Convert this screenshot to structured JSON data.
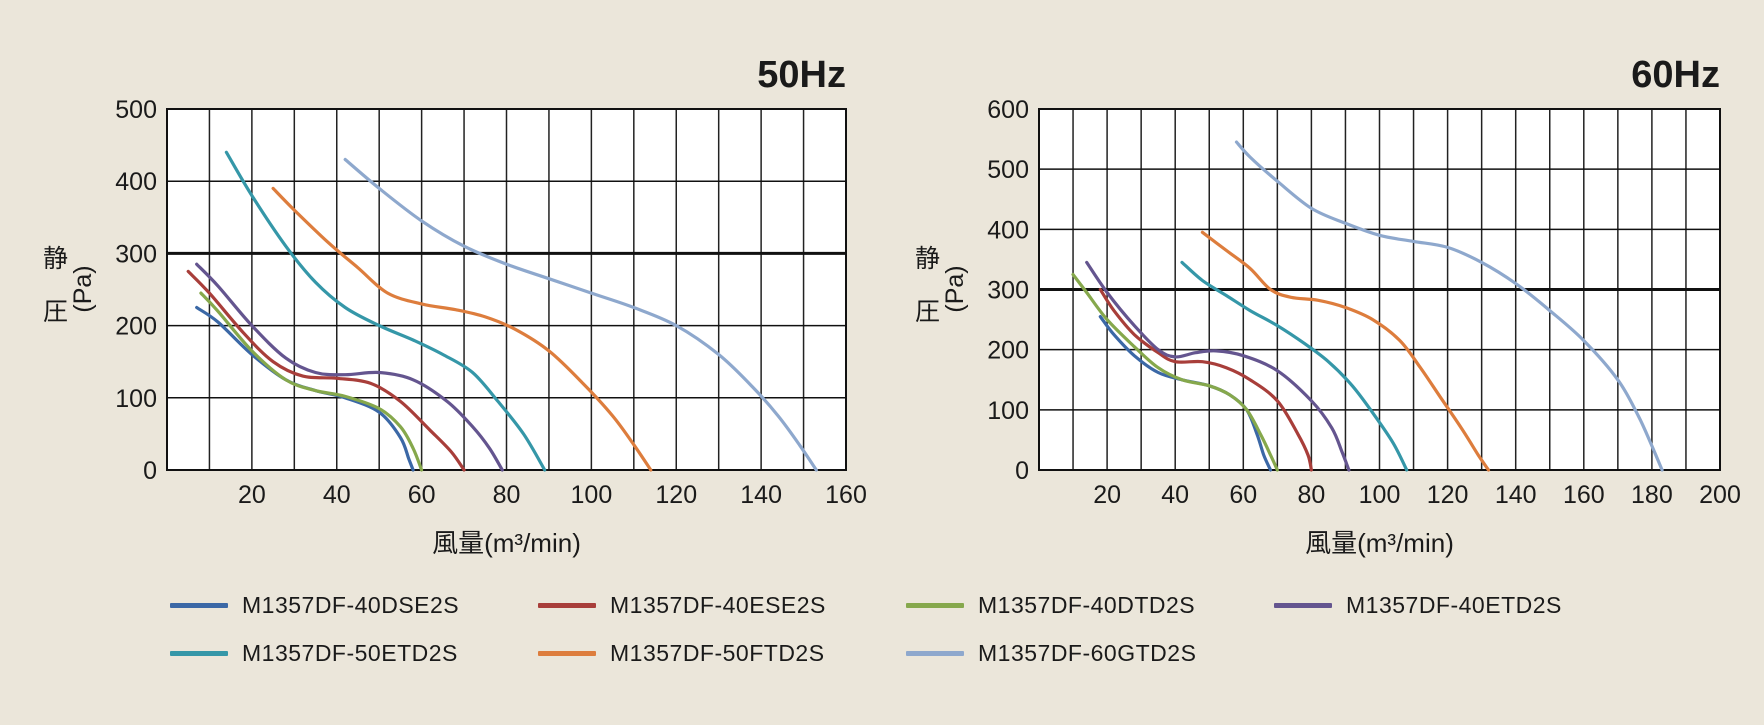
{
  "series_styles": [
    {
      "name": "M1357DF-40DSE2S",
      "color": "#3b68a6"
    },
    {
      "name": "M1357DF-40ESE2S",
      "color": "#a83e3a"
    },
    {
      "name": "M1357DF-40DTD2S",
      "color": "#86a84c"
    },
    {
      "name": "M1357DF-40ETD2S",
      "color": "#64558f"
    },
    {
      "name": "M1357DF-50ETD2S",
      "color": "#3597a8"
    },
    {
      "name": "M1357DF-50FTD2S",
      "color": "#dd7d3d"
    },
    {
      "name": "M1357DF-60GTD2S",
      "color": "#8ea8cd"
    }
  ],
  "chart_data": [
    {
      "type": "line",
      "title": "50Hz",
      "xlabel": "風量(m³/min)",
      "ylabel": "静圧 (Pa)",
      "xlim": [
        0,
        160
      ],
      "ylim": [
        0,
        500
      ],
      "xticks": [
        20,
        40,
        60,
        80,
        100,
        120,
        140,
        160
      ],
      "yticks": [
        0,
        100,
        200,
        300,
        400,
        500
      ],
      "grid": true,
      "x_grid_step": 10,
      "emphasized_y": 300,
      "legend_position": "bottom",
      "series": [
        {
          "name": "M1357DF-40DSE2S",
          "points": [
            [
              7,
              225
            ],
            [
              12,
              205
            ],
            [
              20,
              160
            ],
            [
              28,
              125
            ],
            [
              35,
              110
            ],
            [
              42,
              100
            ],
            [
              50,
              80
            ],
            [
              55,
              45
            ],
            [
              57,
              15
            ],
            [
              58,
              0
            ]
          ]
        },
        {
          "name": "M1357DF-40ESE2S",
          "points": [
            [
              5,
              275
            ],
            [
              10,
              245
            ],
            [
              18,
              190
            ],
            [
              25,
              150
            ],
            [
              32,
              130
            ],
            [
              40,
              127
            ],
            [
              48,
              120
            ],
            [
              55,
              95
            ],
            [
              62,
              55
            ],
            [
              67,
              25
            ],
            [
              70,
              0
            ]
          ]
        },
        {
          "name": "M1357DF-40DTD2S",
          "points": [
            [
              8,
              245
            ],
            [
              12,
              220
            ],
            [
              20,
              165
            ],
            [
              28,
              125
            ],
            [
              35,
              110
            ],
            [
              42,
              102
            ],
            [
              50,
              85
            ],
            [
              55,
              60
            ],
            [
              58,
              30
            ],
            [
              60,
              0
            ]
          ]
        },
        {
          "name": "M1357DF-40ETD2S",
          "points": [
            [
              7,
              285
            ],
            [
              12,
              255
            ],
            [
              20,
              200
            ],
            [
              28,
              155
            ],
            [
              35,
              135
            ],
            [
              42,
              132
            ],
            [
              50,
              135
            ],
            [
              58,
              125
            ],
            [
              66,
              95
            ],
            [
              72,
              60
            ],
            [
              76,
              30
            ],
            [
              79,
              0
            ]
          ]
        },
        {
          "name": "M1357DF-50ETD2S",
          "points": [
            [
              14,
              440
            ],
            [
              20,
              380
            ],
            [
              28,
              310
            ],
            [
              35,
              260
            ],
            [
              42,
              225
            ],
            [
              50,
              200
            ],
            [
              58,
              180
            ],
            [
              65,
              160
            ],
            [
              72,
              135
            ],
            [
              78,
              95
            ],
            [
              84,
              50
            ],
            [
              89,
              0
            ]
          ]
        },
        {
          "name": "M1357DF-50FTD2S",
          "points": [
            [
              25,
              390
            ],
            [
              30,
              360
            ],
            [
              38,
              315
            ],
            [
              45,
              280
            ],
            [
              52,
              245
            ],
            [
              60,
              230
            ],
            [
              68,
              222
            ],
            [
              75,
              212
            ],
            [
              82,
              195
            ],
            [
              90,
              165
            ],
            [
              98,
              120
            ],
            [
              105,
              75
            ],
            [
              110,
              35
            ],
            [
              114,
              0
            ]
          ]
        },
        {
          "name": "M1357DF-60GTD2S",
          "points": [
            [
              42,
              430
            ],
            [
              50,
              390
            ],
            [
              60,
              345
            ],
            [
              70,
              310
            ],
            [
              80,
              285
            ],
            [
              90,
              265
            ],
            [
              100,
              245
            ],
            [
              110,
              225
            ],
            [
              120,
              200
            ],
            [
              130,
              160
            ],
            [
              138,
              115
            ],
            [
              144,
              75
            ],
            [
              149,
              35
            ],
            [
              153,
              0
            ]
          ]
        }
      ]
    },
    {
      "type": "line",
      "title": "60Hz",
      "xlabel": "風量(m³/min)",
      "ylabel": "静圧 (Pa)",
      "xlim": [
        0,
        200
      ],
      "ylim": [
        0,
        600
      ],
      "xticks": [
        20,
        40,
        60,
        80,
        100,
        120,
        140,
        160,
        180,
        200
      ],
      "yticks": [
        0,
        100,
        200,
        300,
        400,
        500,
        600
      ],
      "grid": true,
      "x_grid_step": 10,
      "emphasized_y": 300,
      "legend_position": "bottom",
      "series": [
        {
          "name": "M1357DF-40DSE2S",
          "points": [
            [
              18,
              255
            ],
            [
              22,
              225
            ],
            [
              28,
              190
            ],
            [
              35,
              162
            ],
            [
              42,
              150
            ],
            [
              50,
              140
            ],
            [
              56,
              125
            ],
            [
              61,
              100
            ],
            [
              64,
              60
            ],
            [
              66,
              25
            ],
            [
              68,
              0
            ]
          ]
        },
        {
          "name": "M1357DF-40ESE2S",
          "points": [
            [
              18,
              300
            ],
            [
              22,
              265
            ],
            [
              28,
              225
            ],
            [
              35,
              195
            ],
            [
              40,
              180
            ],
            [
              48,
              180
            ],
            [
              55,
              170
            ],
            [
              62,
              150
            ],
            [
              70,
              115
            ],
            [
              76,
              60
            ],
            [
              79,
              25
            ],
            [
              80,
              0
            ]
          ]
        },
        {
          "name": "M1357DF-40DTD2S",
          "points": [
            [
              10,
              325
            ],
            [
              14,
              295
            ],
            [
              20,
              250
            ],
            [
              28,
              205
            ],
            [
              35,
              170
            ],
            [
              42,
              150
            ],
            [
              50,
              140
            ],
            [
              56,
              125
            ],
            [
              61,
              100
            ],
            [
              65,
              60
            ],
            [
              68,
              25
            ],
            [
              70,
              0
            ]
          ]
        },
        {
          "name": "M1357DF-40ETD2S",
          "points": [
            [
              14,
              345
            ],
            [
              20,
              295
            ],
            [
              28,
              240
            ],
            [
              35,
              200
            ],
            [
              40,
              188
            ],
            [
              46,
              195
            ],
            [
              52,
              198
            ],
            [
              60,
              190
            ],
            [
              70,
              165
            ],
            [
              80,
              115
            ],
            [
              86,
              70
            ],
            [
              89,
              30
            ],
            [
              91,
              0
            ]
          ]
        },
        {
          "name": "M1357DF-50ETD2S",
          "points": [
            [
              42,
              345
            ],
            [
              48,
              315
            ],
            [
              55,
              290
            ],
            [
              62,
              265
            ],
            [
              70,
              240
            ],
            [
              78,
              210
            ],
            [
              85,
              180
            ],
            [
              92,
              140
            ],
            [
              98,
              95
            ],
            [
              104,
              45
            ],
            [
              108,
              0
            ]
          ]
        },
        {
          "name": "M1357DF-50FTD2S",
          "points": [
            [
              48,
              395
            ],
            [
              55,
              365
            ],
            [
              62,
              335
            ],
            [
              68,
              300
            ],
            [
              74,
              287
            ],
            [
              82,
              282
            ],
            [
              90,
              270
            ],
            [
              98,
              250
            ],
            [
              106,
              215
            ],
            [
              112,
              170
            ],
            [
              118,
              120
            ],
            [
              124,
              70
            ],
            [
              129,
              25
            ],
            [
              132,
              0
            ]
          ]
        },
        {
          "name": "M1357DF-60GTD2S",
          "points": [
            [
              58,
              545
            ],
            [
              62,
              520
            ],
            [
              70,
              480
            ],
            [
              80,
              435
            ],
            [
              90,
              410
            ],
            [
              100,
              390
            ],
            [
              110,
              380
            ],
            [
              120,
              370
            ],
            [
              130,
              345
            ],
            [
              140,
              310
            ],
            [
              150,
              265
            ],
            [
              160,
              215
            ],
            [
              170,
              150
            ],
            [
              176,
              90
            ],
            [
              180,
              40
            ],
            [
              183,
              0
            ]
          ]
        }
      ]
    }
  ]
}
